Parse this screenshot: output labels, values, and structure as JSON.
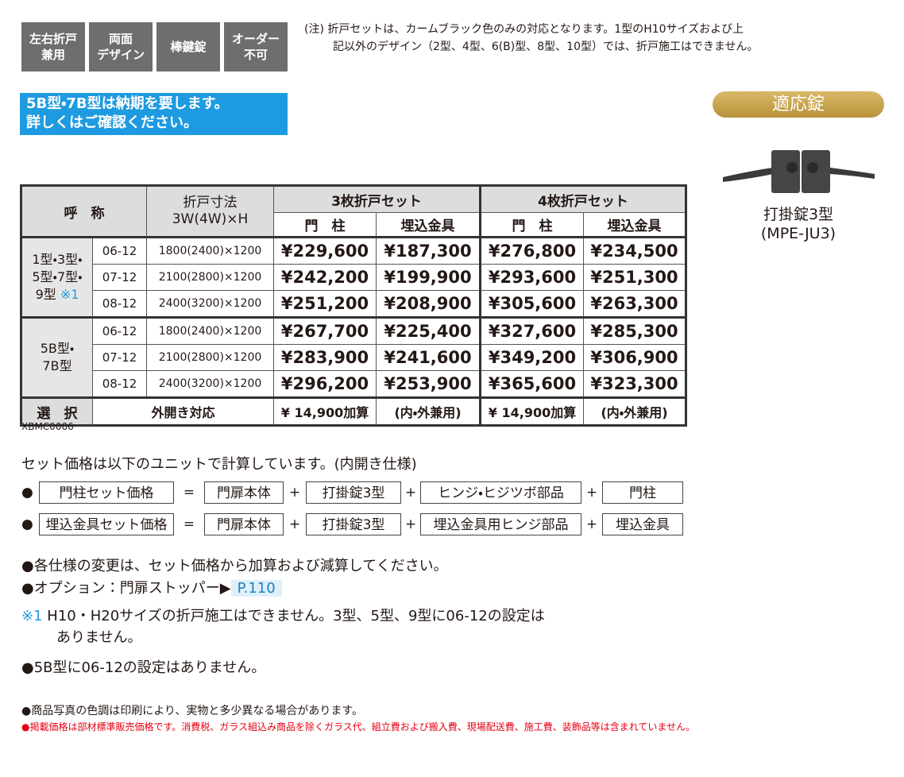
{
  "badges": [
    [
      "左右折戸",
      "兼用"
    ],
    [
      "両面",
      "デザイン"
    ],
    [
      "棒鍵錠"
    ],
    [
      "オーダー",
      "不可"
    ]
  ],
  "note": [
    "(注) 折戸セットは、カームブラック色のみの対応となります。1型のH10サイズおよび上",
    "記以外のデザイン（2型、4型、6(B)型、8型、10型）では、折戸施工はできません。"
  ],
  "notice": [
    "5B型・7B型は納期を要します。",
    "詳しくはご確認ください。"
  ],
  "lock": {
    "heading": "適応錠",
    "name": "打掛錠3型",
    "code": "(MPE-JU3)"
  },
  "table": {
    "header": {
      "name": "呼　称",
      "size": [
        "折戸寸法",
        "3W(4W)×H"
      ],
      "set3": "3枚折戸セット",
      "set4": "4枚折戸セット",
      "sub": [
        "門　柱",
        "埋込金具",
        "門　柱",
        "埋込金具"
      ]
    },
    "groups": [
      {
        "label": [
          "1型・3型・",
          "5型・7型・",
          "9型"
        ],
        "mark": "※1",
        "rows": [
          [
            "06-12",
            "1800(2400)×1200",
            "¥229,600",
            "¥187,300",
            "¥276,800",
            "¥234,500"
          ],
          [
            "07-12",
            "2100(2800)×1200",
            "¥242,200",
            "¥199,900",
            "¥293,600",
            "¥251,300"
          ],
          [
            "08-12",
            "2400(3200)×1200",
            "¥251,200",
            "¥208,900",
            "¥305,600",
            "¥263,300"
          ]
        ]
      },
      {
        "label": [
          "5B型・",
          "7B型"
        ],
        "rows": [
          [
            "06-12",
            "1800(2400)×1200",
            "¥267,700",
            "¥225,400",
            "¥327,600",
            "¥285,300"
          ],
          [
            "07-12",
            "2100(2800)×1200",
            "¥283,900",
            "¥241,600",
            "¥349,200",
            "¥306,900"
          ],
          [
            "08-12",
            "2400(3200)×1200",
            "¥296,200",
            "¥253,900",
            "¥365,600",
            "¥323,300"
          ]
        ]
      }
    ],
    "option": [
      "選　択",
      "外開き対応",
      "¥ 14,900加算",
      "(内・外兼用)",
      "¥ 14,900加算",
      "(内・外兼用)"
    ]
  },
  "code": "XBMC0006",
  "formula_intro": "セット価格は以下のユニットで計算しています。(内開き仕様)",
  "formulas": [
    {
      "bullet": "●",
      "items": [
        "門柱セット価格",
        "=",
        "門扉本体",
        "+",
        "打掛錠3型",
        "+",
        "ヒンジ・ヒジツボ部品",
        "+",
        "門柱"
      ]
    },
    {
      "bullet": "●",
      "items": [
        "埋込金具セット価格",
        "=",
        "門扉本体",
        "+",
        "打掛錠3型",
        "+",
        "埋込金具用ヒンジ部品",
        "+",
        "埋込金具"
      ]
    }
  ],
  "notes": {
    "change": "●各仕様の変更は、セット価格から加算および減算してください。",
    "option": "●オプション：門扉ストッパー▶",
    "option_page": "P.110",
    "mark": "※1",
    "mark_text": [
      "H10・H20サイズの折戸施工はできません。3型、5型、9型に06-12の設定は",
      "ありません。"
    ],
    "b5": "●5B型に06-12の設定はありません。"
  },
  "footer": [
    "●商品写真の色調は印刷により、実物と多少異なる場合があります。",
    "●掲載価格は部材標準販売価格です。消費税、ガラス組込み商品を除くガラス代、組立費および搬入費、現場配送費、施工費、装飾品等は含まれていません。"
  ]
}
